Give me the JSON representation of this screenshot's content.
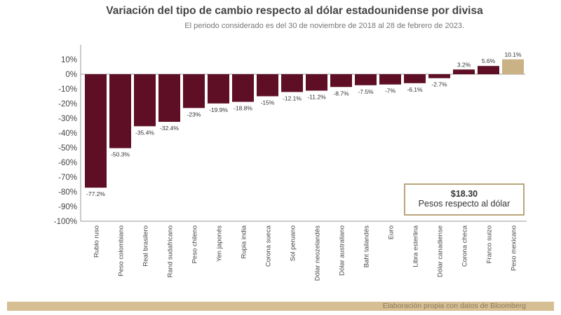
{
  "chart_data": {
    "type": "bar",
    "title": "Variación del tipo de cambio respecto al dólar estadounidense por divisa",
    "subtitle": "El periodo considerado es del 30 de noviembre de 2018 al 28 de febrero de 2023.",
    "categories": [
      "Rublo ruso",
      "Peso colombiano",
      "Real brasilero",
      "Rand sudafricano",
      "Peso chileno",
      "Yen japonés",
      "Rupia india",
      "Corona sueca",
      "Sol peruano",
      "Dólar neozelandés",
      "Dólar australiano",
      "Baht tailandés",
      "Euro",
      "Libra esterlina",
      "Dólar canadiense",
      "Corona checa",
      "Franco suizo",
      "Peso mexicano"
    ],
    "values": [
      -77.2,
      -50.3,
      -35.4,
      -32.4,
      -23,
      -19.9,
      -18.8,
      -15,
      -12.1,
      -11.2,
      -8.7,
      -7.5,
      -7,
      -6.1,
      -2.7,
      3.2,
      5.6,
      10.1
    ],
    "data_labels": [
      "-77.2%",
      "-50.3%",
      "-35.4%",
      "-32.4%",
      "-23%",
      "-19.9%",
      "-18.8%",
      "-15%",
      "-12.1%",
      "-11.2%",
      "-8.7%",
      "-7.5%",
      "-7%",
      "-6.1%",
      "-2.7%",
      "3.2%",
      "5.6%",
      "10.1%"
    ],
    "yticks": [
      "10%",
      "0%",
      "-10%",
      "-20%",
      "-30%",
      "-40%",
      "-50%",
      "-60%",
      "-70%",
      "-80%",
      "-90%",
      "-100%"
    ],
    "ylim": [
      -100,
      15
    ],
    "xlabel": "",
    "ylabel": "",
    "grid": false,
    "colors": {
      "default": "#5e0f25",
      "highlight": "#c9b285"
    },
    "highlight_category": "Peso mexicano"
  },
  "callout": {
    "value": "$18.30",
    "label": "Pesos respecto al dólar"
  },
  "source": "Elaboración propia con datos de Bloomberg"
}
